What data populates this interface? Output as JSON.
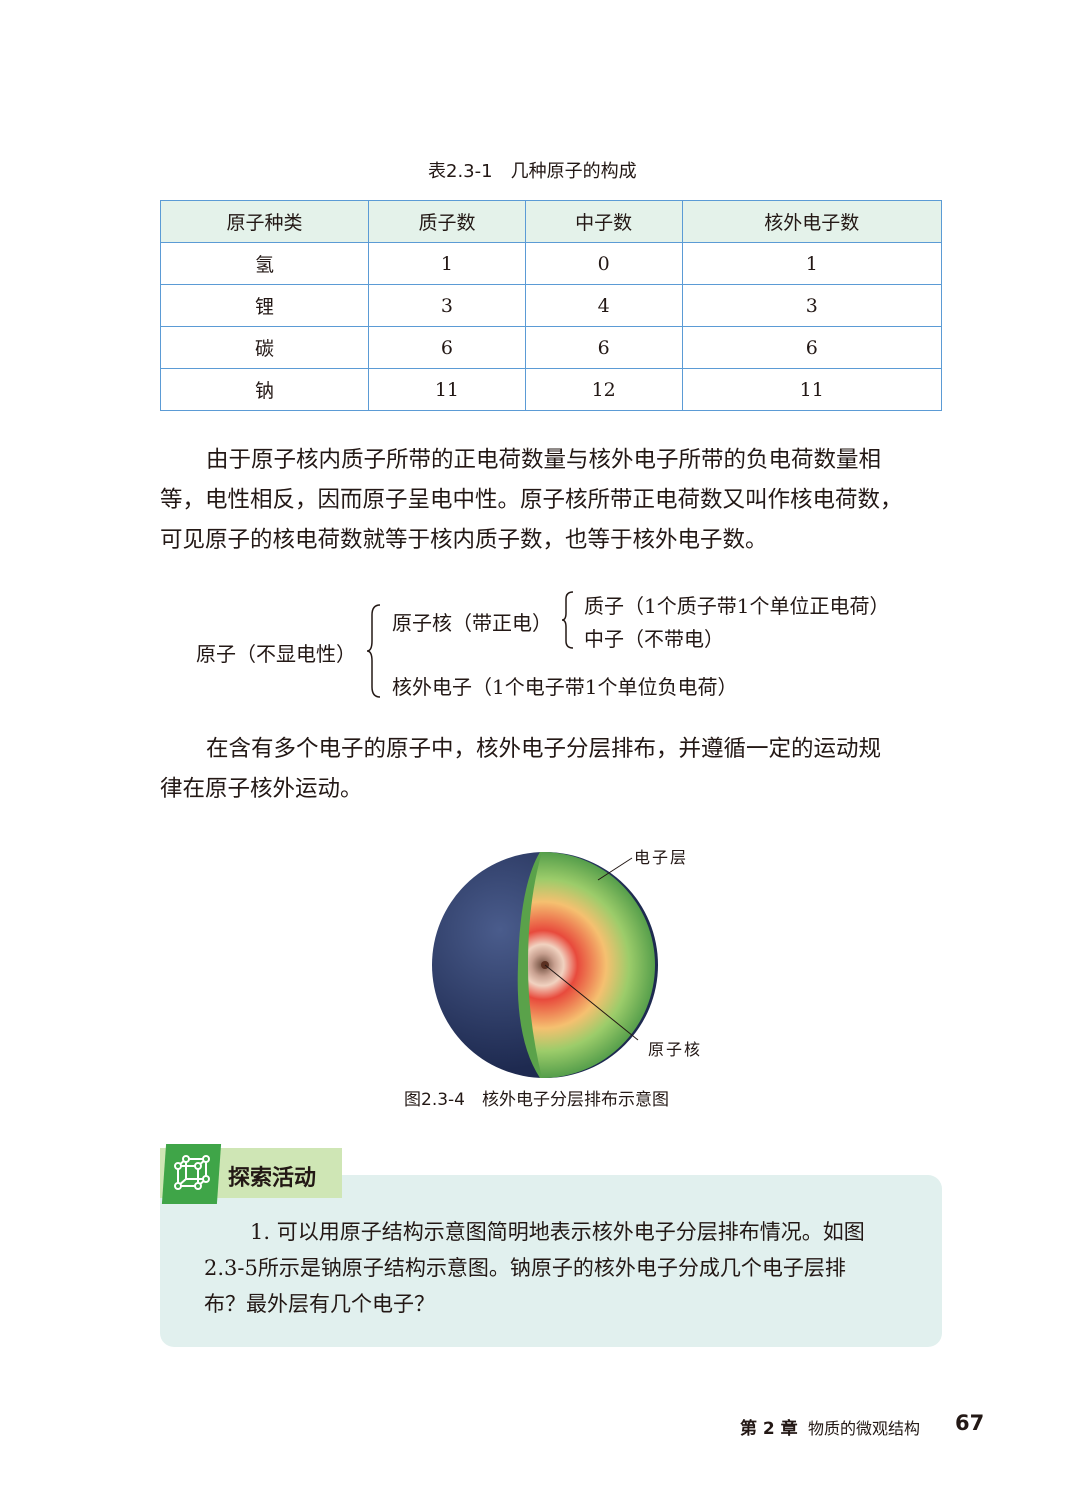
{
  "table": {
    "caption": "表2.3-1　几种原子的构成",
    "headers": [
      "原子种类",
      "质子数",
      "中子数",
      "核外电子数"
    ],
    "rows": [
      [
        "氢",
        "1",
        "0",
        "1"
      ],
      [
        "锂",
        "3",
        "4",
        "3"
      ],
      [
        "碳",
        "6",
        "6",
        "6"
      ],
      [
        "钠",
        "11",
        "12",
        "11"
      ]
    ]
  },
  "paragraph1": {
    "lines": [
      "由于原子核内质子所带的正电荷数量与核外电子所带的负电荷数量相",
      "等，电性相反，因而原子呈电中性。原子核所带正电荷数又叫作核电荷数，",
      "可见原子的核电荷数就等于核内质子数，也等于核外电子数。"
    ]
  },
  "structure": {
    "atom": "原子（不显电性）",
    "nucleus": "原子核（带正电）",
    "proton": "质子（1个质子带1个单位正电荷）",
    "neutron": "中子（不带电）",
    "electron": "核外电子（1个电子带1个单位负电荷）"
  },
  "paragraph2": {
    "lines": [
      "在含有多个电子的原子中，核外电子分层排布，并遵循一定的运动规",
      "律在原子核外运动。"
    ]
  },
  "figure": {
    "label_shell": "电子层",
    "label_nucleus": "原子核",
    "caption": "图2.3-4　核外电子分层排布示意图"
  },
  "activity": {
    "title": "探索活动",
    "icon": "cube-network-icon",
    "lines": [
      "1. 可以用原子结构示意图简明地表示核外电子分层排布情况。如图",
      "2.3-5所示是钠原子结构示意图。钠原子的核外电子分成几个电子层排",
      "布？最外层有几个电子？"
    ]
  },
  "footer": {
    "chapter": "第 2 章",
    "chapter_title": "物质的微观结构",
    "page_number": "67"
  },
  "colors": {
    "table_border": "#5b9bd5",
    "table_header": "#e4f2ea",
    "activity_bg": "#e1f0ee",
    "activity_accent": "#3fa548"
  }
}
